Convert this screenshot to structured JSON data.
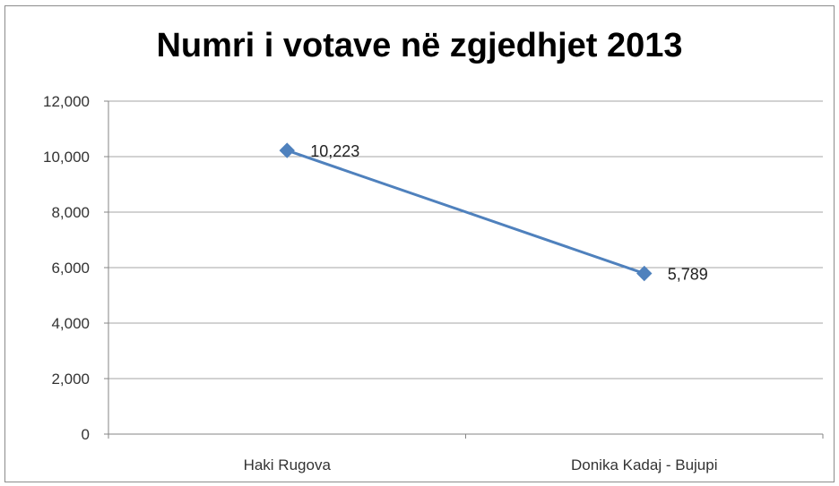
{
  "chart_data": {
    "type": "line",
    "title": "Numri i votave në zgjedhjet 2013",
    "categories": [
      "Haki Rugova",
      "Donika Kadaj - Bujupi"
    ],
    "series": [
      {
        "values": [
          10223,
          5789
        ],
        "labels": [
          "10,223",
          "5,789"
        ],
        "color": "#4f81bd"
      }
    ],
    "ylim": [
      0,
      12000
    ],
    "y_ticks": [
      0,
      2000,
      4000,
      6000,
      8000,
      10000,
      12000
    ],
    "y_tick_labels": [
      "0",
      "2,000",
      "4,000",
      "6,000",
      "8,000",
      "10,000",
      "12,000"
    ],
    "grid": true,
    "marker": "diamond",
    "gridline_color": "#a6a6a6"
  }
}
